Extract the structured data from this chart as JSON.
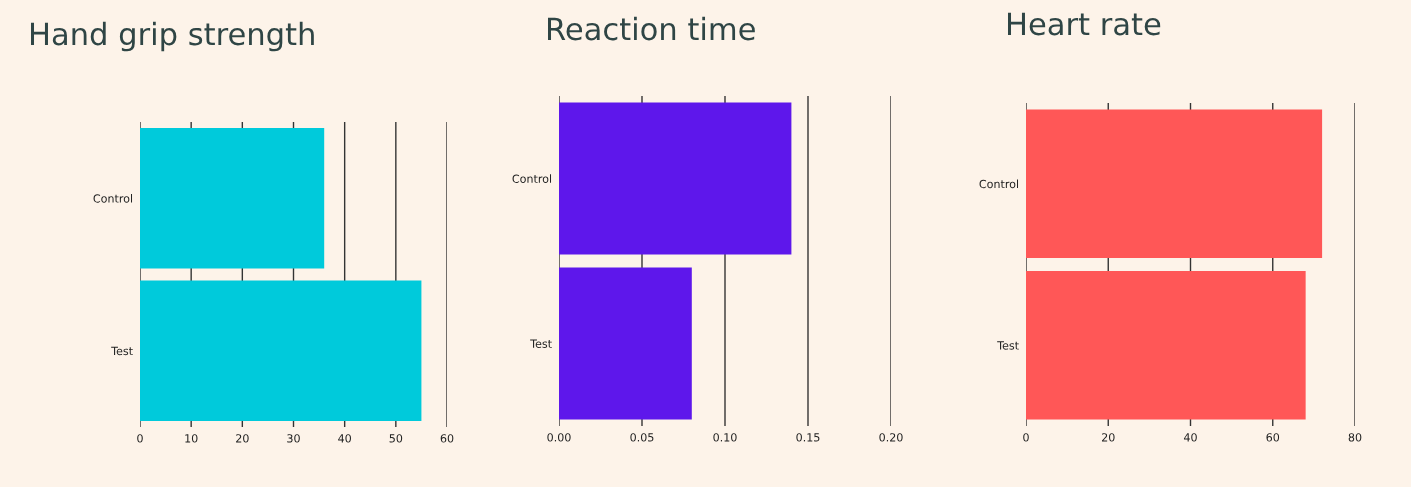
{
  "chart_data": [
    {
      "type": "bar",
      "orientation": "horizontal",
      "title": "Hand grip strength",
      "categories": [
        "Control",
        "Test"
      ],
      "series": [
        {
          "color": "#00cadb",
          "values": [
            36,
            55
          ]
        }
      ],
      "xlim": [
        0,
        60
      ],
      "xticks": [
        0,
        10,
        20,
        30,
        40,
        50,
        60
      ],
      "grid": "x",
      "legend": false
    },
    {
      "type": "bar",
      "orientation": "horizontal",
      "title": "Reaction time",
      "categories": [
        "Control",
        "Test"
      ],
      "series": [
        {
          "color": "#5e17eb",
          "values": [
            0.14,
            0.08
          ]
        }
      ],
      "xlim": [
        0,
        0.2
      ],
      "xticks": [
        {
          "value": 0,
          "label": "0.00"
        },
        {
          "value": 0.05,
          "label": "0.05"
        },
        {
          "value": 0.1,
          "label": "0.10"
        },
        {
          "value": 0.15,
          "label": "0.15"
        },
        {
          "value": 0.2,
          "label": "0.20"
        }
      ],
      "grid": "x",
      "legend": false
    },
    {
      "type": "bar",
      "orientation": "horizontal",
      "title": "Heart rate",
      "categories": [
        "Control",
        "Test"
      ],
      "series": [
        {
          "color": "#ff5757",
          "values": [
            72,
            68
          ]
        }
      ],
      "xlim": [
        0,
        80
      ],
      "xticks": [
        0,
        20,
        40,
        60,
        80
      ],
      "grid": "x",
      "legend": false
    }
  ]
}
